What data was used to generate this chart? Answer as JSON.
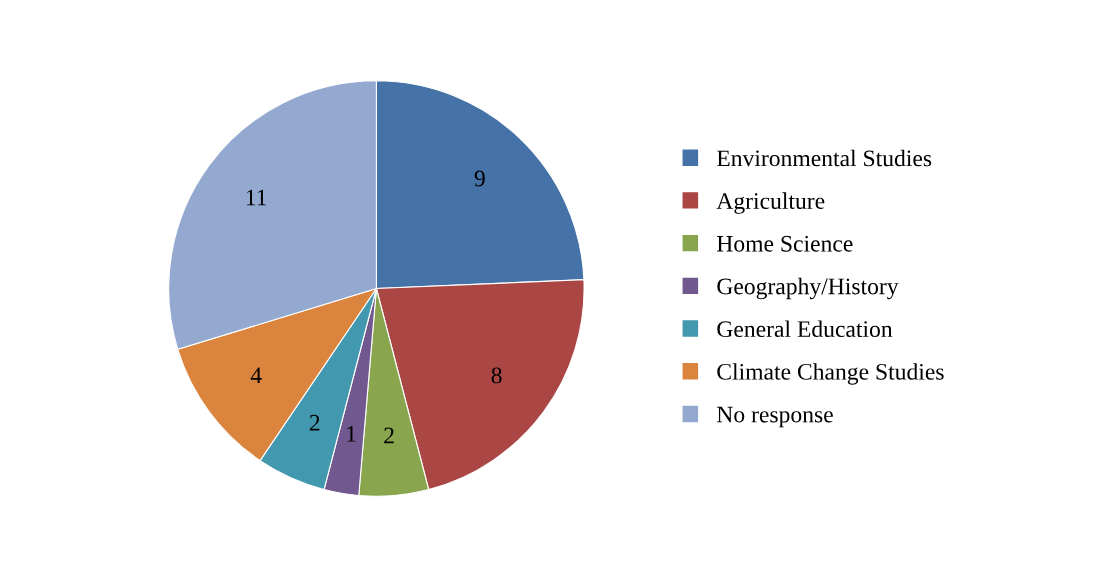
{
  "chart_data": {
    "type": "pie",
    "categories": [
      "Environmental Studies",
      "Agriculture",
      "Home Science",
      "Geography/History",
      "General Education",
      "Climate Change Studies",
      "No response"
    ],
    "values": [
      9,
      8,
      2,
      1,
      2,
      4,
      11
    ],
    "colors": [
      "#4572a7",
      "#aa4643",
      "#89a54e",
      "#71588f",
      "#4198af",
      "#db843d",
      "#93a9cf"
    ],
    "data_labels": true,
    "legend": "right"
  }
}
